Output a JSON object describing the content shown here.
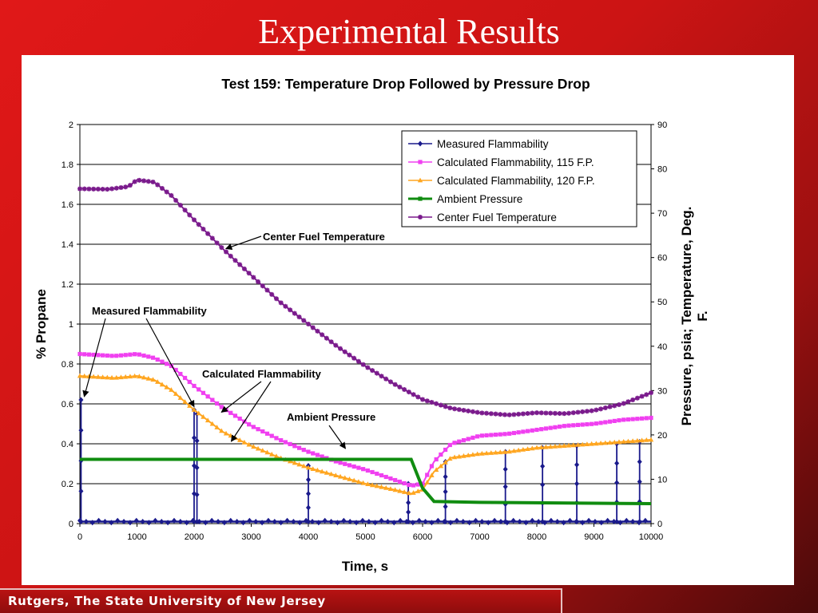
{
  "slide": {
    "title": "Experimental Results",
    "footer": "Rutgers, The State University of New Jersey"
  },
  "colors": {
    "measured": "#1a1a8c",
    "calc115": "#f040f0",
    "calc120": "#ffa620",
    "pressure": "#108c10",
    "temperature": "#7a1a8c"
  },
  "chart_data": {
    "type": "line",
    "title": "Test 159:  Temperature Drop Followed by Pressure Drop",
    "xlabel": "Time, s",
    "ylabel": "% Propane",
    "y2label": "Pressure, psia; Temperature, Deg. F.",
    "xlim": [
      0,
      10000
    ],
    "ylim": [
      0,
      2
    ],
    "y2lim": [
      0,
      90
    ],
    "xticks": [
      "0",
      "1000",
      "2000",
      "3000",
      "4000",
      "5000",
      "6000",
      "7000",
      "8000",
      "9000",
      "10000"
    ],
    "yticks": [
      "0",
      "0.2",
      "0.4",
      "0.6",
      "0.8",
      "1",
      "1.2",
      "1.4",
      "1.6",
      "1.8",
      "2"
    ],
    "y2ticks": [
      "0",
      "10",
      "20",
      "30",
      "40",
      "50",
      "60",
      "70",
      "80",
      "90"
    ],
    "grid": true,
    "legend_position": "top-right",
    "series": [
      {
        "name": "Measured Flammability",
        "axis": "left",
        "marker": "diamond",
        "baseline": 0.01,
        "spikes": [
          [
            20,
            0.62
          ],
          [
            2000,
            0.57
          ],
          [
            2050,
            0.55
          ],
          [
            4000,
            0.29
          ],
          [
            5750,
            0.2
          ],
          [
            6400,
            0.31
          ],
          [
            7450,
            0.36
          ],
          [
            8100,
            0.38
          ],
          [
            8700,
            0.39
          ],
          [
            9400,
            0.4
          ],
          [
            9800,
            0.41
          ]
        ]
      },
      {
        "name": "Calculated Flammability, 115 F.P.",
        "axis": "left",
        "marker": "square",
        "points": [
          [
            0,
            0.85
          ],
          [
            300,
            0.845
          ],
          [
            600,
            0.84
          ],
          [
            1000,
            0.85
          ],
          [
            1300,
            0.83
          ],
          [
            1600,
            0.79
          ],
          [
            2000,
            0.69
          ],
          [
            2500,
            0.58
          ],
          [
            3000,
            0.49
          ],
          [
            3500,
            0.42
          ],
          [
            4000,
            0.36
          ],
          [
            4500,
            0.31
          ],
          [
            5000,
            0.27
          ],
          [
            5500,
            0.22
          ],
          [
            5800,
            0.19
          ],
          [
            6000,
            0.2
          ],
          [
            6200,
            0.31
          ],
          [
            6500,
            0.4
          ],
          [
            7000,
            0.44
          ],
          [
            7500,
            0.45
          ],
          [
            8000,
            0.47
          ],
          [
            8500,
            0.49
          ],
          [
            9000,
            0.5
          ],
          [
            9500,
            0.52
          ],
          [
            10000,
            0.53
          ]
        ]
      },
      {
        "name": "Calculated Flammability, 120 F.P.",
        "axis": "left",
        "marker": "triangle",
        "points": [
          [
            0,
            0.74
          ],
          [
            300,
            0.735
          ],
          [
            600,
            0.73
          ],
          [
            1000,
            0.74
          ],
          [
            1300,
            0.72
          ],
          [
            1600,
            0.67
          ],
          [
            2000,
            0.57
          ],
          [
            2500,
            0.46
          ],
          [
            3000,
            0.39
          ],
          [
            3500,
            0.33
          ],
          [
            4000,
            0.28
          ],
          [
            4500,
            0.24
          ],
          [
            5000,
            0.2
          ],
          [
            5500,
            0.17
          ],
          [
            5800,
            0.15
          ],
          [
            6000,
            0.17
          ],
          [
            6200,
            0.26
          ],
          [
            6500,
            0.33
          ],
          [
            7000,
            0.35
          ],
          [
            7500,
            0.36
          ],
          [
            8000,
            0.38
          ],
          [
            8500,
            0.39
          ],
          [
            9000,
            0.4
          ],
          [
            9500,
            0.41
          ],
          [
            10000,
            0.42
          ]
        ]
      },
      {
        "name": "Ambient Pressure",
        "axis": "right",
        "marker": "square",
        "points": [
          [
            0,
            14.5
          ],
          [
            5800,
            14.5
          ],
          [
            6000,
            8
          ],
          [
            6200,
            5
          ],
          [
            7000,
            4.8
          ],
          [
            10000,
            4.5
          ]
        ]
      },
      {
        "name": "Center Fuel Temperature",
        "axis": "right",
        "marker": "star",
        "points": [
          [
            0,
            75.5
          ],
          [
            500,
            75.4
          ],
          [
            850,
            76
          ],
          [
            1000,
            77.5
          ],
          [
            1300,
            77
          ],
          [
            1600,
            74
          ],
          [
            2000,
            68.5
          ],
          [
            2500,
            62
          ],
          [
            3000,
            56
          ],
          [
            3500,
            50
          ],
          [
            4000,
            45
          ],
          [
            4500,
            40
          ],
          [
            5000,
            35.5
          ],
          [
            5500,
            31.5
          ],
          [
            6000,
            28
          ],
          [
            6500,
            26
          ],
          [
            7000,
            25
          ],
          [
            7500,
            24.5
          ],
          [
            8000,
            25
          ],
          [
            8500,
            24.8
          ],
          [
            9000,
            25.5
          ],
          [
            9500,
            27
          ],
          [
            10000,
            29.5
          ]
        ]
      }
    ],
    "annotations": [
      {
        "text": "Center Fuel Temperature",
        "target": [
          2500,
          62
        ],
        "target_axis": "right"
      },
      {
        "text": "Measured Flammability",
        "target": [
          20,
          0.62
        ],
        "target2": [
          2000,
          0.57
        ]
      },
      {
        "text": "Calculated Flammability",
        "target": [
          2450,
          0.55
        ],
        "target2": [
          2650,
          0.42
        ]
      },
      {
        "text": "Ambient Pressure",
        "target": [
          4650,
          0.36
        ]
      }
    ]
  }
}
